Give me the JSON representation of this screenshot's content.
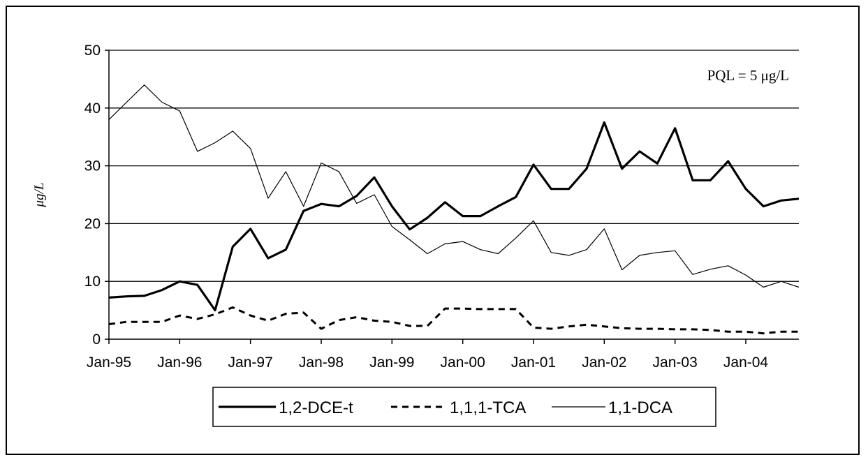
{
  "chart_data": {
    "type": "line",
    "title": "",
    "xlabel": "",
    "ylabel": "μg/L",
    "annotation": "PQL = 5 μg/L",
    "ylim": [
      0,
      50
    ],
    "yticks": [
      "0",
      "10",
      "20",
      "30",
      "40",
      "50"
    ],
    "xlim": [
      "1995-01",
      "2004-10"
    ],
    "x_tick_labels": [
      "Jan-95",
      "Jan-96",
      "Jan-97",
      "Jan-98",
      "Jan-99",
      "Jan-00",
      "Jan-01",
      "Jan-02",
      "Jan-03",
      "Jan-04"
    ],
    "grid": "horizontal",
    "legend_position": "bottom",
    "x": [
      "1995-01",
      "1995-04",
      "1995-07",
      "1995-10",
      "1996-01",
      "1996-04",
      "1996-07",
      "1996-10",
      "1997-01",
      "1997-04",
      "1997-07",
      "1997-10",
      "1998-01",
      "1998-04",
      "1998-07",
      "1998-10",
      "1999-01",
      "1999-04",
      "1999-07",
      "1999-10",
      "2000-01",
      "2000-04",
      "2000-07",
      "2000-10",
      "2001-01",
      "2001-04",
      "2001-07",
      "2001-10",
      "2002-01",
      "2002-04",
      "2002-07",
      "2002-10",
      "2003-01",
      "2003-04",
      "2003-07",
      "2003-10",
      "2004-01",
      "2004-04",
      "2004-07",
      "2004-10"
    ],
    "series": [
      {
        "name": "1,2-DCE-t",
        "style": "thick",
        "values": [
          7.2,
          7.4,
          7.5,
          8.5,
          10.0,
          9.4,
          5.0,
          16.0,
          19.1,
          14.0,
          15.5,
          22.2,
          23.4,
          23.0,
          24.8,
          28.0,
          23.0,
          19.0,
          21.0,
          23.7,
          21.3,
          21.3,
          23.0,
          24.6,
          30.2,
          26.0,
          26.0,
          29.5,
          37.5,
          29.5,
          32.5,
          30.4,
          36.5,
          27.5,
          27.5,
          30.8,
          26.0,
          23.0,
          24.0,
          24.3
        ]
      },
      {
        "name": "1,1,1-TCA",
        "style": "dashed",
        "values": [
          2.6,
          3.0,
          3.0,
          3.0,
          4.1,
          3.5,
          4.3,
          5.5,
          4.1,
          3.2,
          4.4,
          4.6,
          1.8,
          3.3,
          3.8,
          3.2,
          3.0,
          2.3,
          2.3,
          5.3,
          5.3,
          5.2,
          5.2,
          5.2,
          2.0,
          1.8,
          2.2,
          2.5,
          2.2,
          1.9,
          1.8,
          1.8,
          1.7,
          1.7,
          1.6,
          1.3,
          1.3,
          1.0,
          1.3,
          1.3
        ]
      },
      {
        "name": "1,1-DCA",
        "style": "thin",
        "values": [
          38.0,
          41.0,
          44.0,
          41.0,
          39.5,
          32.5,
          34.0,
          36.0,
          33.0,
          24.4,
          29.0,
          23.0,
          30.5,
          29.0,
          23.5,
          25.0,
          19.5,
          17.2,
          14.8,
          16.5,
          16.9,
          15.5,
          14.8,
          17.5,
          20.5,
          15.0,
          14.5,
          15.5,
          19.1,
          12.0,
          14.5,
          15.0,
          15.3,
          11.2,
          12.1,
          12.7,
          11.1,
          9.0,
          10.0,
          9.0
        ]
      }
    ]
  }
}
